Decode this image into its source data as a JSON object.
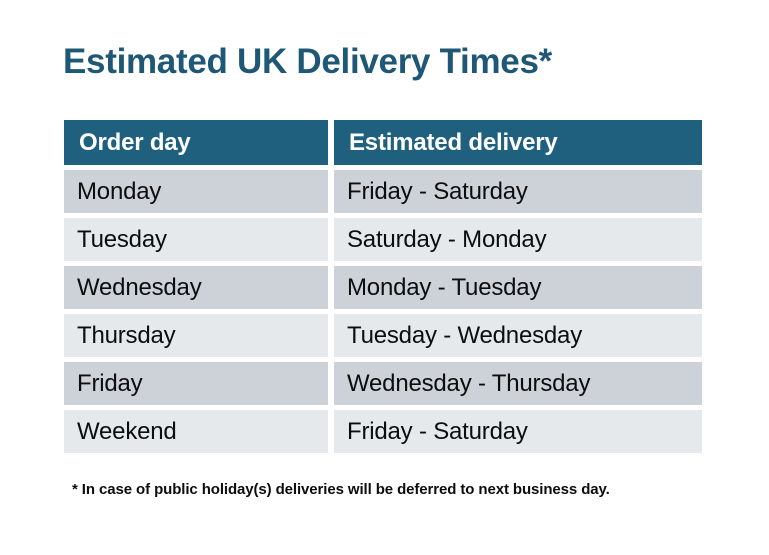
{
  "page": {
    "background": "#ffffff"
  },
  "title": {
    "text": "Estimated UK Delivery Times*",
    "color": "#1F5876"
  },
  "table": {
    "columns": [
      "Order day",
      "Estimated delivery"
    ],
    "rows": [
      [
        "Monday",
        "Friday - Saturday"
      ],
      [
        "Tuesday",
        "Saturday - Monday"
      ],
      [
        "Wednesday",
        "Monday - Tuesday"
      ],
      [
        "Thursday",
        "Tuesday - Wednesday"
      ],
      [
        "Friday",
        "Wednesday - Thursday"
      ],
      [
        "Weekend",
        "Friday - Saturday"
      ]
    ],
    "colors": {
      "header_bg": "#20607F",
      "header_text": "#ffffff",
      "row_odd": "#CDD1D8",
      "row_even": "#E6E9EC",
      "body_text": "#0D0D0D"
    }
  },
  "footnote": {
    "text": "* In case of public holiday(s) deliveries will be deferred to next business day."
  },
  "chart_data": {
    "type": "table",
    "title": "Estimated UK Delivery Times*",
    "columns": [
      "Order day",
      "Estimated delivery"
    ],
    "rows": [
      [
        "Monday",
        "Friday - Saturday"
      ],
      [
        "Tuesday",
        "Saturday - Monday"
      ],
      [
        "Wednesday",
        "Monday - Tuesday"
      ],
      [
        "Thursday",
        "Tuesday - Wednesday"
      ],
      [
        "Friday",
        "Wednesday - Thursday"
      ],
      [
        "Weekend",
        "Friday - Saturday"
      ]
    ],
    "footnote": "* In case of public holiday(s) deliveries will be deferred to next business day."
  }
}
